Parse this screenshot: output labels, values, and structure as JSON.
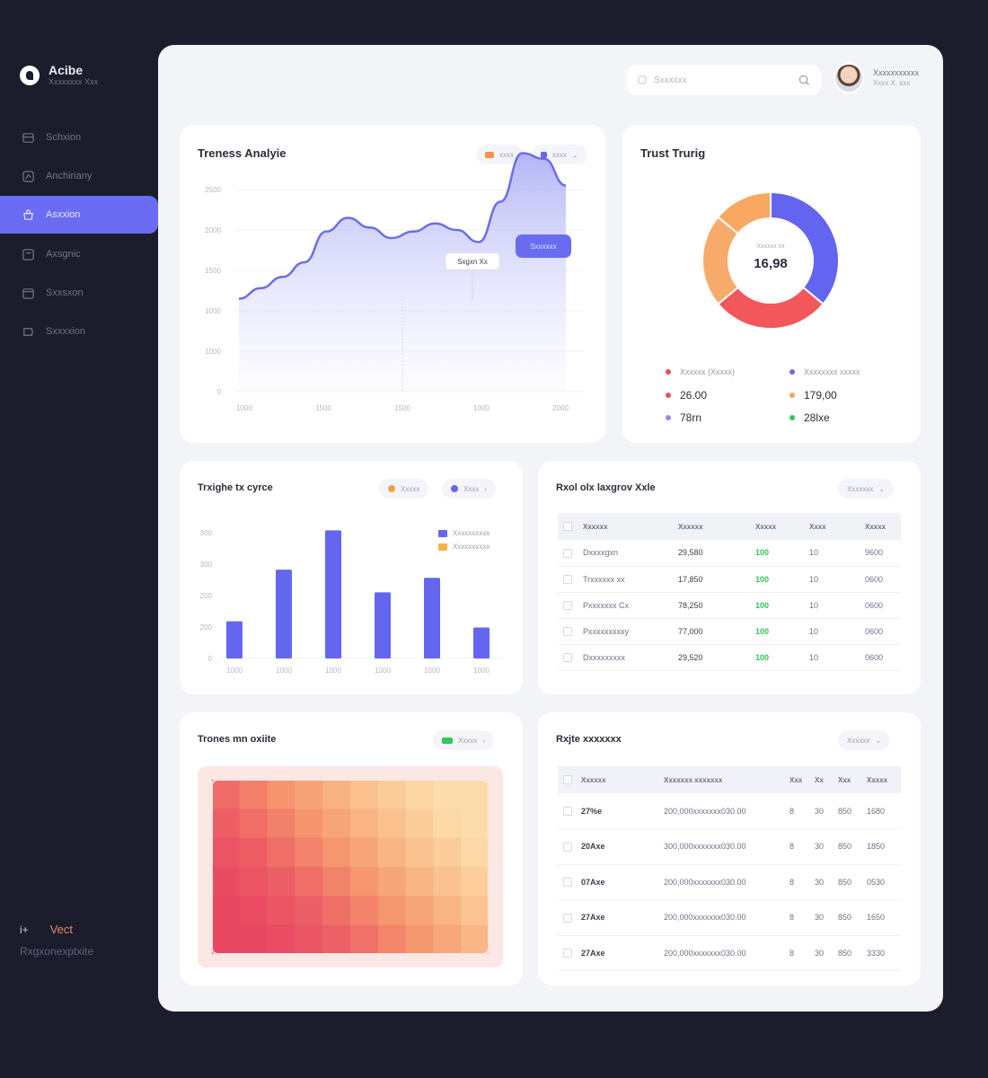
{
  "brand": {
    "name": "Acibe",
    "sub": "Xxxxxxxx Xxx"
  },
  "sidebar": {
    "items": [
      {
        "label": "Schxion",
        "icon": "layers-icon"
      },
      {
        "label": "Anchiriany",
        "icon": "chart-icon"
      },
      {
        "label": "Asxxion",
        "icon": "cart-icon",
        "active": true
      },
      {
        "label": "Axsgnic",
        "icon": "folder-icon"
      },
      {
        "label": "Sxxsxon",
        "icon": "calendar-icon"
      },
      {
        "label": "Sxxxxion",
        "icon": "gear-icon"
      }
    ],
    "footer_tag": "i+",
    "footer_view": "Vect",
    "footer_sub": "Rxgxonexptxite"
  },
  "header": {
    "search_placeholder": "Sxxxxxx",
    "profile_name": "Xxxxxxxxxxx",
    "profile_sub": "Xxxx X. xxx"
  },
  "trends": {
    "title": "Treness Analyie",
    "chip1": "xxxx",
    "chip2": "xxxx",
    "button": "Sxxxxxx",
    "tooltip": "Sxgxn Xx",
    "colors": {
      "line": "#6b6ee6",
      "fill": "#c8c9f6",
      "chip1": "#f4934b",
      "chip2": "#6567e8"
    },
    "chart_data": {
      "type": "area",
      "yticks": [
        "2500",
        "2000",
        "1500",
        "1000",
        "1000",
        "0"
      ],
      "xticks": [
        "1000",
        "1500",
        "1500",
        "1000",
        "2000"
      ],
      "values": [
        1150,
        1280,
        1420,
        1600,
        1980,
        2150,
        2030,
        1900,
        1980,
        2080,
        2000,
        1850,
        2350,
        2950,
        2880,
        2550
      ],
      "ylim": [
        0,
        3000
      ]
    }
  },
  "donut": {
    "title": "Trust Trurig",
    "center_label": "Xxxxxx xx",
    "center_value": "16,98",
    "legend": [
      {
        "label": "Xxxxxx (Xxxxx)",
        "color": "#ec4f56",
        "small": true
      },
      {
        "label": "Xxxxxxxx xxxxx",
        "color": "#6a6cf0",
        "small": true
      },
      {
        "label": "26.00",
        "color": "#ec4f56"
      },
      {
        "label": "179,00",
        "color": "#f6a65a"
      },
      {
        "label": "78rn",
        "color": "#8b8ee8"
      },
      {
        "label": "28lxe",
        "color": "#33c45f"
      }
    ],
    "chart_data": {
      "type": "pie",
      "slices": [
        {
          "value": 36,
          "color": "#6365f0"
        },
        {
          "value": 28,
          "color": "#f2575c"
        },
        {
          "value": 22,
          "color": "#f7ab6b"
        },
        {
          "value": 14,
          "color": "#f8a85f"
        }
      ]
    }
  },
  "bars": {
    "title": "Trxighe tx cyrce",
    "chip1": "Xxxxx",
    "chip2": "Xxxx",
    "legend1": "Xxxxxxxxxx",
    "legend2": "Xxxxxxxxxx",
    "colors": {
      "bar": "#6466ef",
      "legend1": "#6466ef",
      "legend2": "#f4b544",
      "chip1": "#f59d4a",
      "chip2": "#6466ef"
    },
    "chart_data": {
      "type": "bar",
      "categories": [
        "1000",
        "1000",
        "1000",
        "1000",
        "1000",
        "1000"
      ],
      "values": [
        90,
        215,
        310,
        160,
        195,
        75
      ],
      "yticks": [
        "300",
        "300",
        "200",
        "200",
        "0"
      ],
      "ylim": [
        0,
        350
      ]
    }
  },
  "table1": {
    "title": "Rxol olx laxgrov Xxle",
    "filter": "Xxxxxxx",
    "headers": [
      "Xxxxxx",
      "Xxxxxx",
      "Xxxxx",
      "Xxxx",
      "Xxxxx"
    ],
    "rows": [
      [
        "Dxxxxgxn",
        "29,580",
        "100",
        "10",
        "9600"
      ],
      [
        "Trxxxxxx xx",
        "17,850",
        "100",
        "10",
        "0600"
      ],
      [
        "Pxxxxxxx Cx",
        "78,250",
        "100",
        "10",
        "0600"
      ],
      [
        "Pxxxxxxxxxy",
        "77,000",
        "100",
        "10",
        "0600"
      ],
      [
        "Dxxxxxxxxx",
        "29,520",
        "100",
        "10",
        "0600"
      ]
    ]
  },
  "heatmap": {
    "title": "Trones mn oxiite",
    "chip": "Xxxxx",
    "chip_color": "#2dc95a"
  },
  "table2": {
    "title": "Rxjte xxxxxxx",
    "filter": "Xxxxxx",
    "headers": [
      "Xxxxxx",
      "Xxxxxxx xxxxxxx",
      "Xxx",
      "Xx",
      "Xxx",
      "Xxxxx"
    ],
    "rows": [
      [
        "27%e",
        "200,000xxxxxxx030.00",
        "8",
        "30",
        "850",
        "1680"
      ],
      [
        "20Axe",
        "300,000xxxxxxx030.00",
        "8",
        "30",
        "850",
        "1850"
      ],
      [
        "07Axe",
        "200,000xxxxxxx030.00",
        "8",
        "30",
        "850",
        "0530"
      ],
      [
        "27Axe",
        "200,000xxxxxxx030.00",
        "8",
        "30",
        "850",
        "1650"
      ],
      [
        "27Axe",
        "200,000xxxxxxx030.00",
        "8",
        "30",
        "850",
        "3330"
      ]
    ]
  }
}
